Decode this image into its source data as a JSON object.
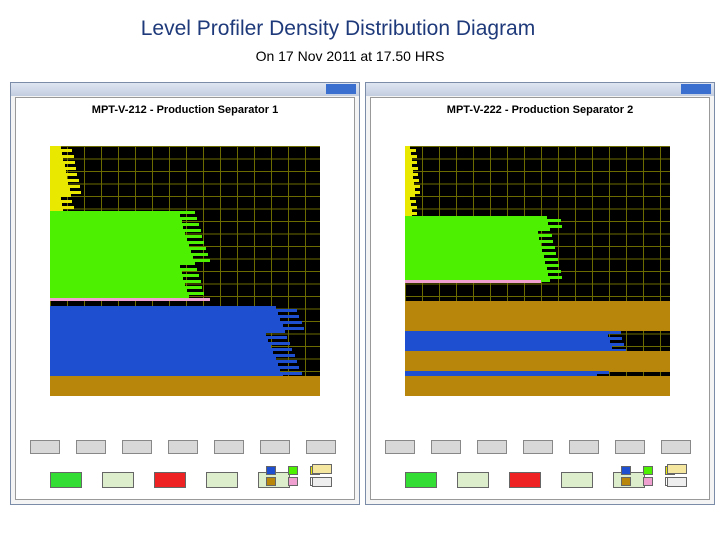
{
  "header": {
    "title": "Level Profiler Density Distribution Diagram",
    "subtitle": "On 17 Nov 2011 at 17.50 HRS"
  },
  "windows": [
    {
      "title": "MPT-V-212 - Production Separator 1"
    },
    {
      "title": "MPT-V-222 - Production Separator 2"
    }
  ]
}
